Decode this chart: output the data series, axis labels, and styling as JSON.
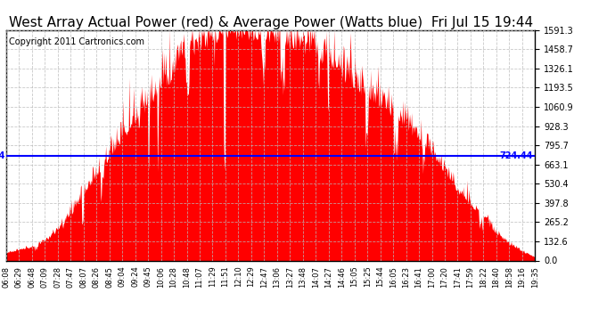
{
  "title": "West Array Actual Power (red) & Average Power (Watts blue)  Fri Jul 15 19:44",
  "copyright": "Copyright 2011 Cartronics.com",
  "average_power": 724.44,
  "ymax": 1591.3,
  "yticks": [
    0.0,
    132.6,
    265.2,
    397.8,
    530.4,
    663.1,
    795.7,
    928.3,
    1060.9,
    1193.5,
    1326.1,
    1458.7,
    1591.3
  ],
  "fill_color": "#FF0000",
  "line_color": "#0000FF",
  "background_color": "#FFFFFF",
  "grid_color": "#BBBBBB",
  "title_fontsize": 11,
  "copyright_fontsize": 7,
  "xtick_labels": [
    "06:08",
    "06:29",
    "06:48",
    "07:09",
    "07:28",
    "07:47",
    "08:07",
    "08:26",
    "08:45",
    "09:04",
    "09:24",
    "09:45",
    "10:06",
    "10:28",
    "10:48",
    "11:07",
    "11:29",
    "11:51",
    "12:10",
    "12:29",
    "12:47",
    "13:06",
    "13:27",
    "13:48",
    "14:07",
    "14:27",
    "14:46",
    "15:05",
    "15:25",
    "15:44",
    "16:05",
    "16:23",
    "16:41",
    "17:00",
    "17:20",
    "17:41",
    "17:59",
    "18:22",
    "18:40",
    "18:58",
    "19:16",
    "19:35"
  ],
  "base_power": [
    50,
    70,
    90,
    130,
    200,
    310,
    430,
    560,
    700,
    820,
    950,
    1050,
    1150,
    1250,
    1350,
    1430,
    1490,
    1510,
    1520,
    1510,
    1500,
    1490,
    1460,
    1430,
    1380,
    1320,
    1250,
    1180,
    1100,
    1050,
    980,
    900,
    820,
    720,
    600,
    460,
    380,
    280,
    180,
    110,
    60,
    20
  ],
  "spike_scale": [
    5,
    8,
    10,
    15,
    25,
    40,
    60,
    80,
    100,
    110,
    120,
    130,
    140,
    150,
    160,
    160,
    150,
    140,
    130,
    120,
    110,
    110,
    120,
    130,
    140,
    150,
    140,
    130,
    120,
    110,
    100,
    90,
    80,
    70,
    60,
    50,
    40,
    30,
    20,
    15,
    10,
    5
  ]
}
